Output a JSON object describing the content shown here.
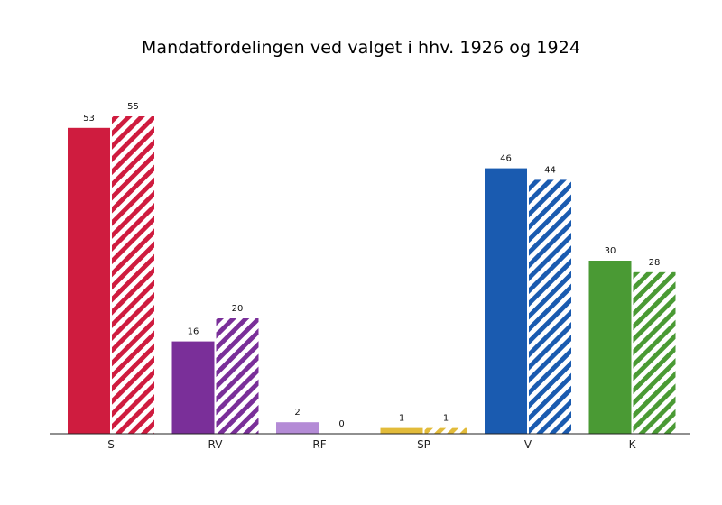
{
  "chart_data": {
    "type": "bar",
    "title": "Mandatfordelingen ved valget i hhv. 1926 og 1924",
    "xlabel": "",
    "ylabel": "",
    "ylim": [
      0,
      55
    ],
    "grid": false,
    "legend": "none",
    "categories": [
      "S",
      "RV",
      "RF",
      "SP",
      "V",
      "K"
    ],
    "colors": [
      "#cf1c3f",
      "#7a2f99",
      "#b48bd6",
      "#e2bb3a",
      "#1a5bb0",
      "#4a9a34"
    ],
    "series": [
      {
        "style": "solid",
        "values": [
          53,
          16,
          2,
          1,
          46,
          30
        ]
      },
      {
        "style": "striped",
        "values": [
          55,
          20,
          0,
          1,
          44,
          28
        ]
      }
    ]
  }
}
